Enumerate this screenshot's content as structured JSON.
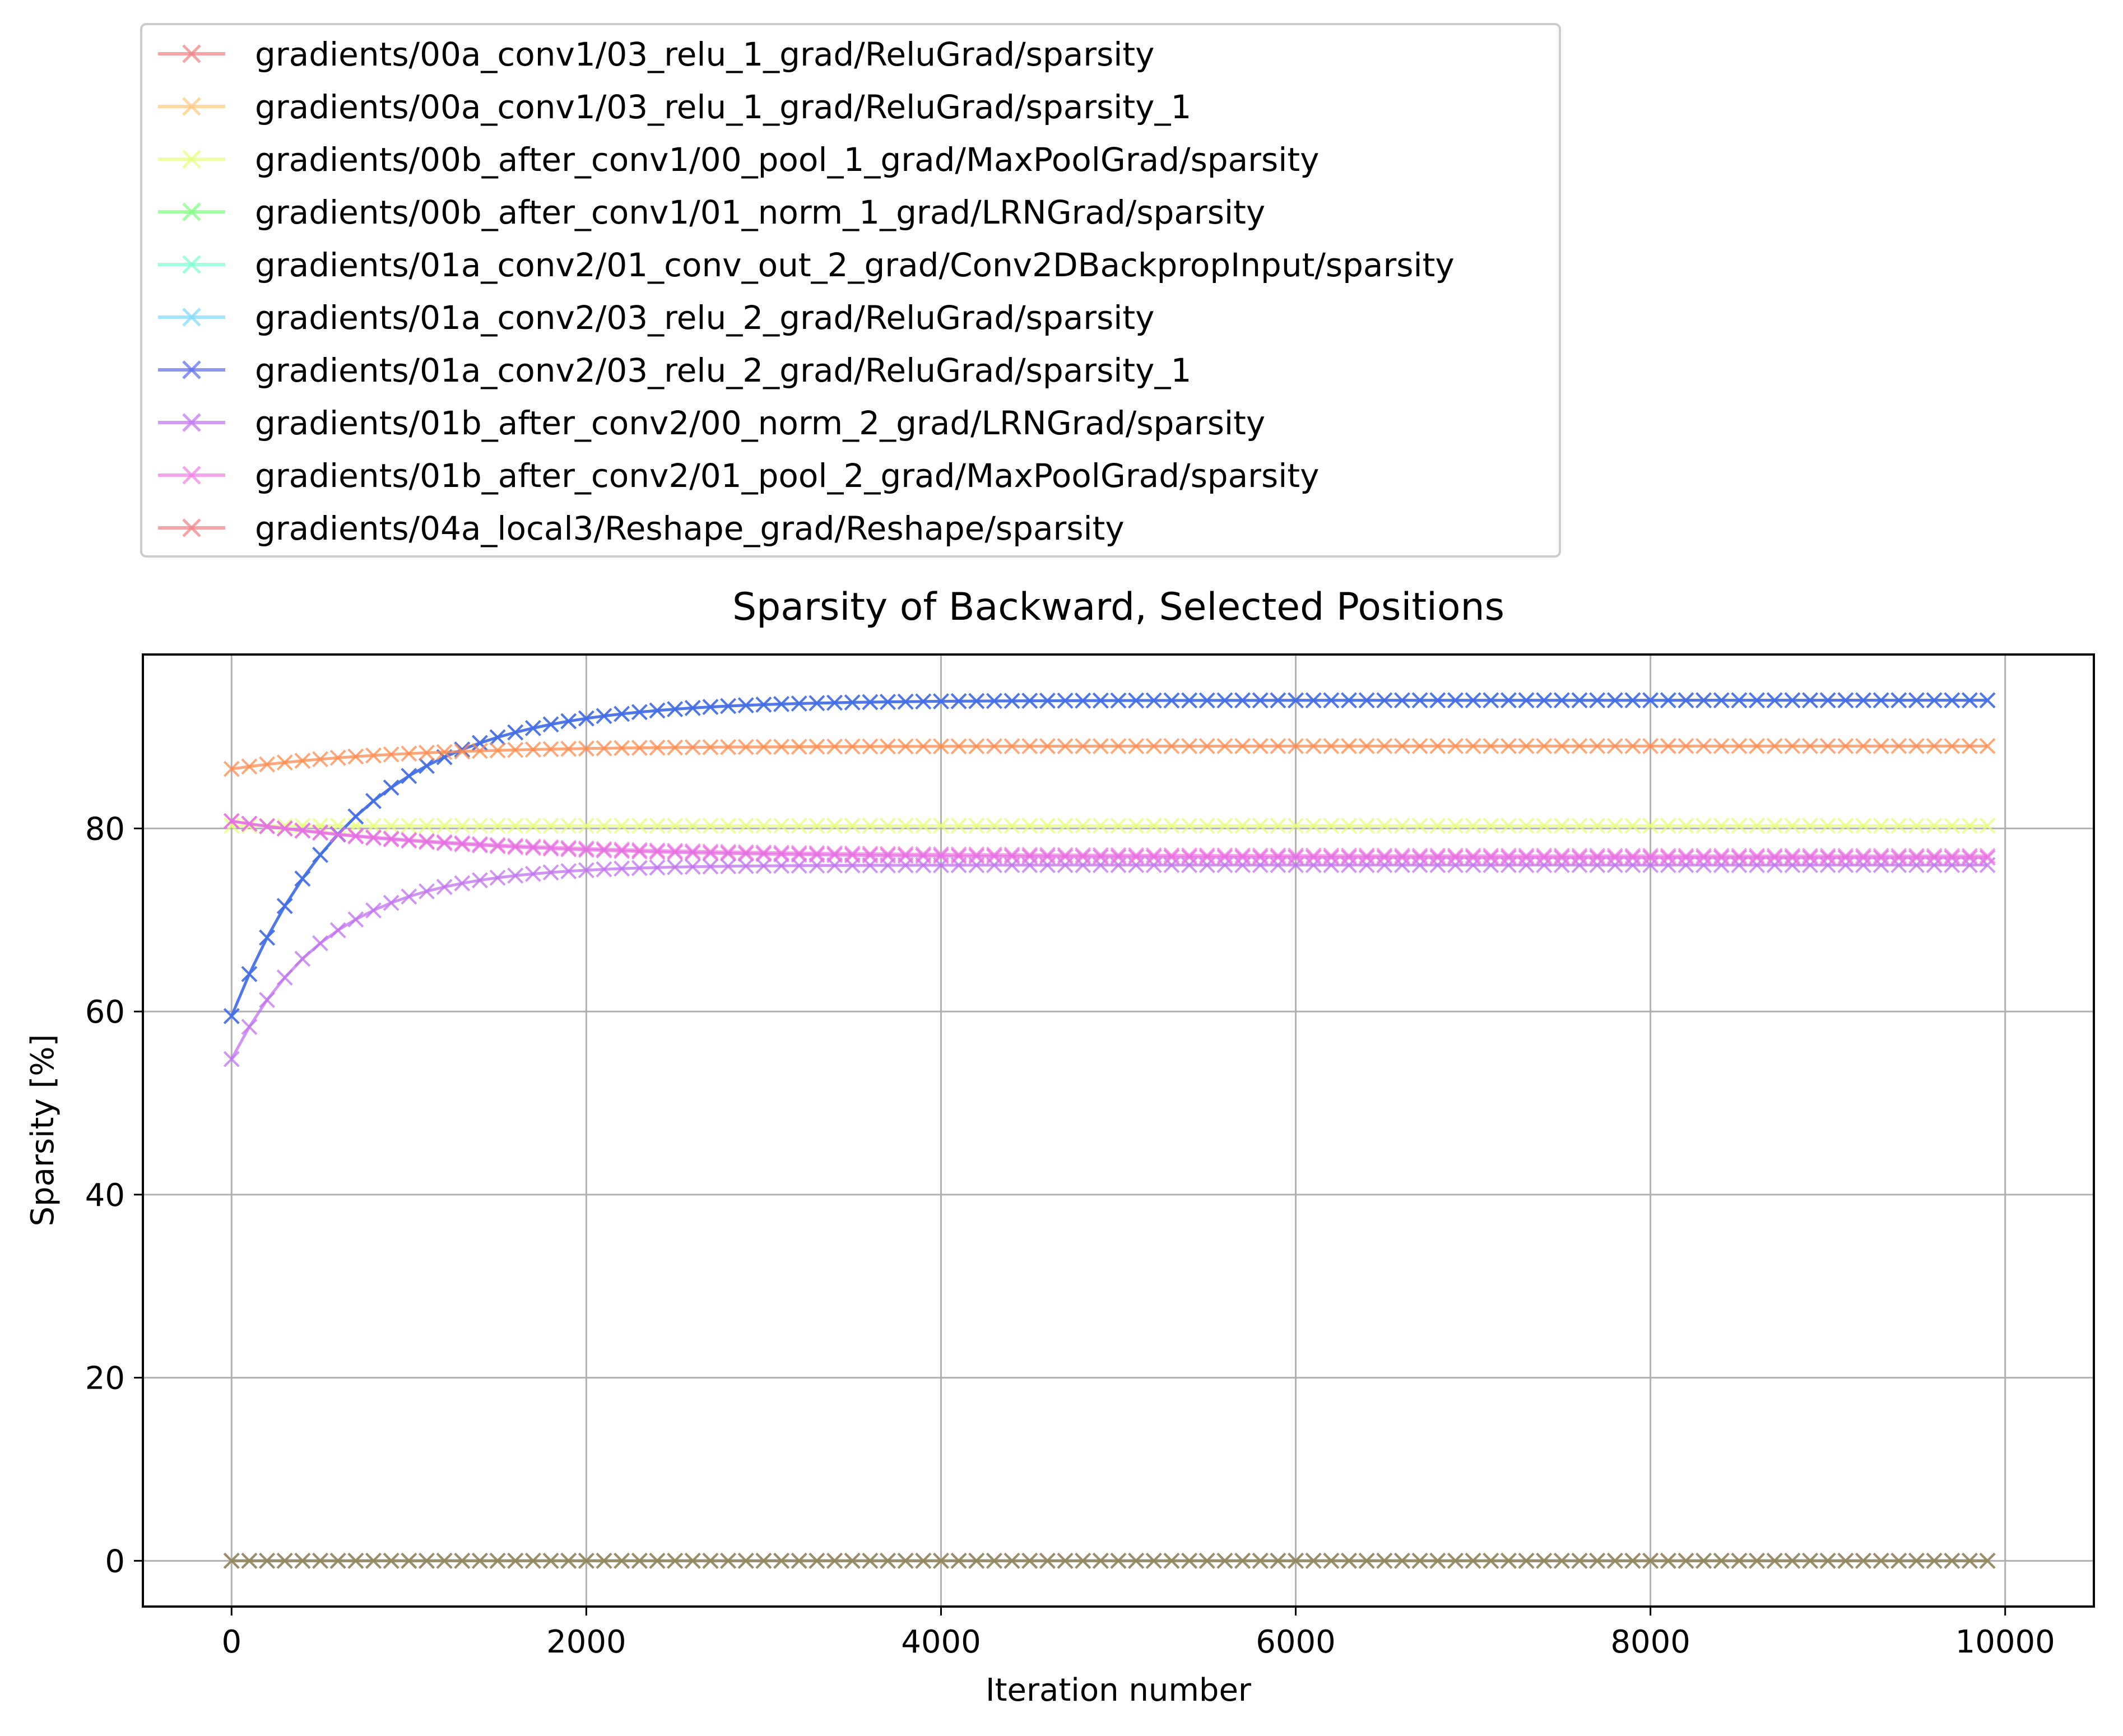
{
  "chart_data": {
    "type": "line",
    "title": "Sparsity of Backward, Selected Positions",
    "xlabel": "Iteration number",
    "ylabel": "Sparsity [%]",
    "xlim": [
      -500,
      10500
    ],
    "ylim": [
      -5,
      99
    ],
    "xticks": [
      0,
      2000,
      4000,
      6000,
      8000,
      10000
    ],
    "xtick_labels": [
      "0",
      "2000",
      "4000",
      "6000",
      "8000",
      "10000"
    ],
    "yticks": [
      0,
      20,
      40,
      60,
      80
    ],
    "ytick_labels": [
      "0",
      "20",
      "40",
      "60",
      "80"
    ],
    "grid": true,
    "legend_position": "above the plot, top-left",
    "marker": "x",
    "x_start": 0,
    "x_step": 100,
    "x_end": 9900,
    "series": [
      {
        "name": "gradients/00a_conv1/03_relu_1_grad/ReluGrad/sparsity",
        "color": "#f08080",
        "pattern": "constant",
        "value": 0.0
      },
      {
        "name": "gradients/00a_conv1/03_relu_1_grad/ReluGrad/sparsity_1",
        "color": "#ffc87a",
        "pattern": "constant",
        "value": 0.0
      },
      {
        "name": "gradients/00b_after_conv1/00_pool_1_grad/MaxPoolGrad/sparsity",
        "color": "#e6ff7a",
        "pattern": "constant",
        "value": 80.3
      },
      {
        "name": "gradients/00b_after_conv1/01_norm_1_grad/LRNGrad/sparsity",
        "color": "#7aff7a",
        "pattern": "constant",
        "value": 0.0
      },
      {
        "name": "gradients/01a_conv2/01_conv_out_2_grad/Conv2DBackpropInput/sparsity",
        "color": "#7affd2",
        "pattern": "constant",
        "value": 0.0
      },
      {
        "name": "gradients/01a_conv2/03_relu_2_grad/ReluGrad/sparsity",
        "color": "#7ad9ff",
        "pattern": "constant",
        "value": 0.0
      },
      {
        "name": "gradients/01a_conv2/03_relu_2_grad/ReluGrad/sparsity_1",
        "color": "#5b6bea",
        "pattern": "rise",
        "start": 59.5,
        "end": 94.0,
        "tau": 700
      },
      {
        "name": "gradients/01b_after_conv2/00_norm_2_grad/LRNGrad/sparsity",
        "color": "#c070ee",
        "pattern": "rise",
        "start": 54.8,
        "end": 76.0,
        "tau": 550
      },
      {
        "name": "gradients/01b_after_conv2/01_pool_2_grad/MaxPoolGrad/sparsity",
        "color": "#f080e6",
        "pattern": "fall",
        "start": 80.8,
        "end": 77.0,
        "tau": 1300
      },
      {
        "name": "gradients/04a_local3/Reshape_grad/Reshape/sparsity",
        "color": "#f08080",
        "pattern": "constant",
        "value": 0.0
      }
    ],
    "overlay_series": [
      {
        "color": "#3f6fe6",
        "pattern": "rise",
        "start": 59.5,
        "end": 94.0,
        "tau": 700
      },
      {
        "color": "#ff8a4c",
        "pattern": "rise",
        "start": 86.5,
        "end": 89.0,
        "tau": 900
      },
      {
        "color": "#8a8a5a",
        "pattern": "constant",
        "value": 0.0
      },
      {
        "color": "#e36fe0",
        "pattern": "fall",
        "start": 80.8,
        "end": 76.8,
        "tau": 1300
      }
    ]
  }
}
